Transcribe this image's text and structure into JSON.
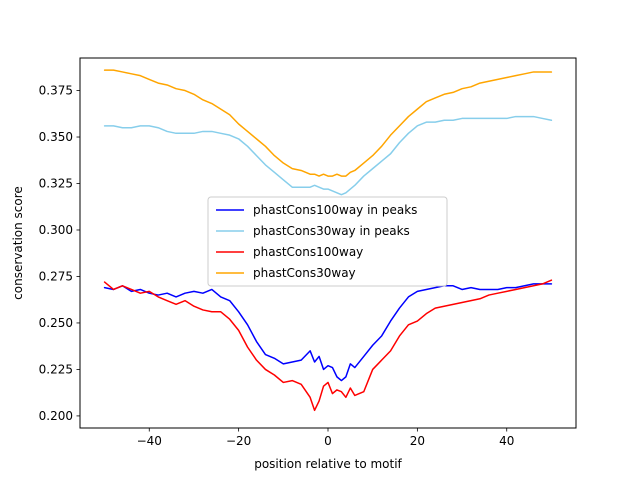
{
  "chart_data": {
    "type": "line",
    "title": "",
    "xlabel": "position relative to motif",
    "ylabel": "conservation score",
    "xlim": [
      -55.5,
      55.5
    ],
    "ylim": [
      0.1935,
      0.3925
    ],
    "xticks": [
      -40,
      -20,
      0,
      20,
      40
    ],
    "yticks": [
      0.2,
      0.225,
      0.25,
      0.275,
      0.3,
      0.325,
      0.35,
      0.375
    ],
    "ytick_labels": [
      "0.200",
      "0.225",
      "0.250",
      "0.275",
      "0.300",
      "0.325",
      "0.350",
      "0.375"
    ],
    "grid": false,
    "legend_position": "center",
    "series": [
      {
        "name": "phastCons100way in peaks",
        "color": "#0000ff",
        "x": [
          -50,
          -48,
          -46,
          -44,
          -42,
          -40,
          -38,
          -36,
          -34,
          -32,
          -30,
          -28,
          -26,
          -24,
          -22,
          -20,
          -18,
          -16,
          -14,
          -12,
          -10,
          -8,
          -6,
          -4,
          -3,
          -2,
          -1,
          0,
          1,
          2,
          3,
          4,
          5,
          6,
          8,
          10,
          12,
          14,
          16,
          18,
          20,
          22,
          24,
          26,
          28,
          30,
          32,
          34,
          36,
          38,
          40,
          42,
          44,
          46,
          48,
          50
        ],
        "values": [
          0.269,
          0.268,
          0.27,
          0.267,
          0.268,
          0.266,
          0.265,
          0.266,
          0.264,
          0.266,
          0.267,
          0.266,
          0.268,
          0.264,
          0.262,
          0.256,
          0.249,
          0.24,
          0.233,
          0.231,
          0.228,
          0.229,
          0.23,
          0.235,
          0.229,
          0.232,
          0.225,
          0.227,
          0.226,
          0.221,
          0.219,
          0.221,
          0.228,
          0.226,
          0.232,
          0.238,
          0.243,
          0.251,
          0.258,
          0.264,
          0.267,
          0.268,
          0.269,
          0.27,
          0.27,
          0.268,
          0.269,
          0.268,
          0.268,
          0.268,
          0.269,
          0.269,
          0.27,
          0.271,
          0.271,
          0.271
        ]
      },
      {
        "name": "phastCons30way in peaks",
        "color": "#87ceeb",
        "x": [
          -50,
          -48,
          -46,
          -44,
          -42,
          -40,
          -38,
          -36,
          -34,
          -32,
          -30,
          -28,
          -26,
          -24,
          -22,
          -20,
          -18,
          -16,
          -14,
          -12,
          -10,
          -8,
          -6,
          -4,
          -3,
          -2,
          -1,
          0,
          1,
          2,
          3,
          4,
          5,
          6,
          8,
          10,
          12,
          14,
          16,
          18,
          20,
          22,
          24,
          26,
          28,
          30,
          32,
          34,
          36,
          38,
          40,
          42,
          44,
          46,
          48,
          50
        ],
        "values": [
          0.356,
          0.356,
          0.355,
          0.355,
          0.356,
          0.356,
          0.355,
          0.353,
          0.352,
          0.352,
          0.352,
          0.353,
          0.353,
          0.352,
          0.351,
          0.349,
          0.345,
          0.34,
          0.335,
          0.331,
          0.327,
          0.323,
          0.323,
          0.323,
          0.324,
          0.323,
          0.322,
          0.322,
          0.321,
          0.32,
          0.319,
          0.32,
          0.322,
          0.324,
          0.329,
          0.333,
          0.337,
          0.341,
          0.347,
          0.352,
          0.356,
          0.358,
          0.358,
          0.359,
          0.359,
          0.36,
          0.36,
          0.36,
          0.36,
          0.36,
          0.36,
          0.361,
          0.361,
          0.361,
          0.36,
          0.359
        ]
      },
      {
        "name": "phastCons100way",
        "color": "#ff0000",
        "x": [
          -50,
          -48,
          -46,
          -44,
          -42,
          -40,
          -38,
          -36,
          -34,
          -32,
          -30,
          -28,
          -26,
          -24,
          -22,
          -20,
          -18,
          -16,
          -14,
          -12,
          -10,
          -8,
          -6,
          -4,
          -3,
          -2,
          -1,
          0,
          1,
          2,
          3,
          4,
          5,
          6,
          8,
          10,
          12,
          14,
          16,
          18,
          20,
          22,
          24,
          26,
          28,
          30,
          32,
          34,
          36,
          38,
          40,
          42,
          44,
          46,
          48,
          50
        ],
        "values": [
          0.272,
          0.268,
          0.27,
          0.268,
          0.266,
          0.267,
          0.264,
          0.262,
          0.26,
          0.262,
          0.259,
          0.257,
          0.256,
          0.256,
          0.252,
          0.246,
          0.237,
          0.23,
          0.225,
          0.222,
          0.218,
          0.219,
          0.217,
          0.21,
          0.203,
          0.208,
          0.216,
          0.218,
          0.212,
          0.214,
          0.213,
          0.21,
          0.215,
          0.211,
          0.213,
          0.225,
          0.23,
          0.235,
          0.243,
          0.249,
          0.251,
          0.255,
          0.258,
          0.259,
          0.26,
          0.261,
          0.262,
          0.263,
          0.265,
          0.266,
          0.267,
          0.268,
          0.269,
          0.27,
          0.271,
          0.273
        ]
      },
      {
        "name": "phastCons30way",
        "color": "#ffa500",
        "x": [
          -50,
          -48,
          -46,
          -44,
          -42,
          -40,
          -38,
          -36,
          -34,
          -32,
          -30,
          -28,
          -26,
          -24,
          -22,
          -20,
          -18,
          -16,
          -14,
          -12,
          -10,
          -8,
          -6,
          -4,
          -3,
          -2,
          -1,
          0,
          1,
          2,
          3,
          4,
          5,
          6,
          8,
          10,
          12,
          14,
          16,
          18,
          20,
          22,
          24,
          26,
          28,
          30,
          32,
          34,
          36,
          38,
          40,
          42,
          44,
          46,
          48,
          50
        ],
        "values": [
          0.386,
          0.386,
          0.385,
          0.384,
          0.383,
          0.381,
          0.379,
          0.378,
          0.376,
          0.375,
          0.373,
          0.37,
          0.368,
          0.365,
          0.362,
          0.357,
          0.353,
          0.349,
          0.345,
          0.34,
          0.336,
          0.333,
          0.332,
          0.33,
          0.33,
          0.329,
          0.33,
          0.329,
          0.329,
          0.33,
          0.329,
          0.329,
          0.331,
          0.332,
          0.336,
          0.34,
          0.345,
          0.351,
          0.356,
          0.361,
          0.365,
          0.369,
          0.371,
          0.373,
          0.374,
          0.376,
          0.377,
          0.379,
          0.38,
          0.381,
          0.382,
          0.383,
          0.384,
          0.385,
          0.385,
          0.385
        ]
      }
    ]
  }
}
